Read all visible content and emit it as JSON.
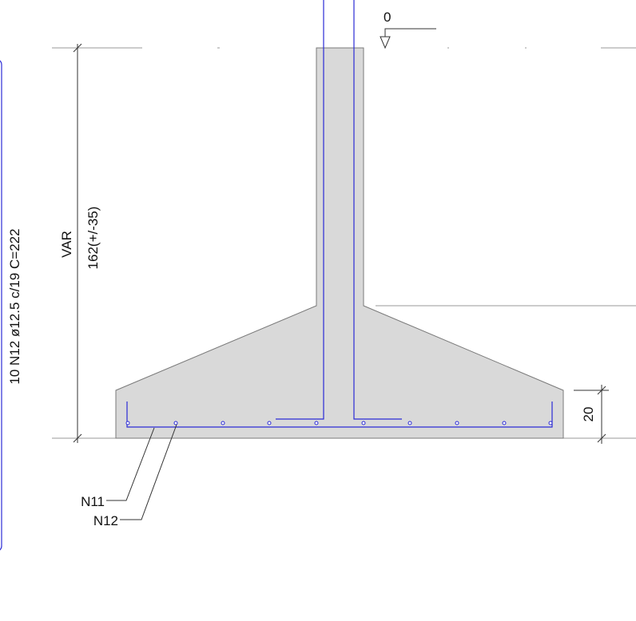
{
  "labels": {
    "level": "0",
    "height_var": "VAR",
    "height_value": "162(+/-35)",
    "rebar_schedule": "10 N12 ø12.5 c/19 C=222",
    "thickness": "20",
    "bar_n11": "N11",
    "bar_n12": "N12"
  },
  "colors": {
    "concrete_fill": "#d9d9d9",
    "concrete_edge": "#7a7a7a",
    "rebar": "#2b2bd6",
    "dimension": "#333333",
    "ground": "#9a9a9a"
  }
}
